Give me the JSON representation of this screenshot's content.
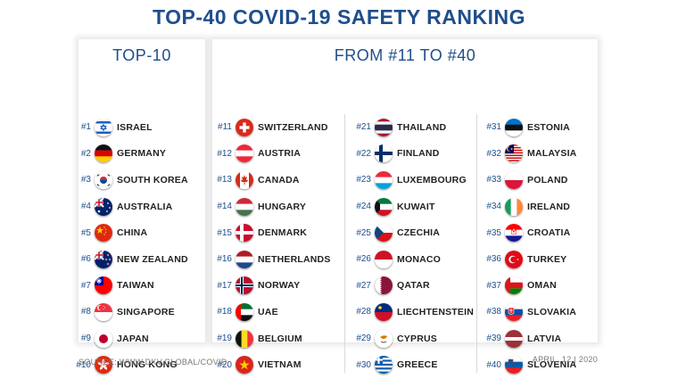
{
  "title": "TOP-40 COVID-19 SAFETY RANKING",
  "top10": {
    "heading": "TOP-10",
    "items": [
      {
        "rank": "#1",
        "name": "ISRAEL",
        "flag": "israel-flag-icon"
      },
      {
        "rank": "#2",
        "name": "GERMANY",
        "flag": "germany-flag-icon"
      },
      {
        "rank": "#3",
        "name": "SOUTH KOREA",
        "flag": "south-korea-flag-icon"
      },
      {
        "rank": "#4",
        "name": "AUSTRALIA",
        "flag": "australia-flag-icon"
      },
      {
        "rank": "#5",
        "name": "CHINA",
        "flag": "china-flag-icon"
      },
      {
        "rank": "#6",
        "name": "NEW ZEALAND",
        "flag": "new-zealand-flag-icon"
      },
      {
        "rank": "#7",
        "name": "TAIWAN",
        "flag": "taiwan-flag-icon"
      },
      {
        "rank": "#8",
        "name": "SINGAPORE",
        "flag": "singapore-flag-icon"
      },
      {
        "rank": "#9",
        "name": "JAPAN",
        "flag": "japan-flag-icon"
      },
      {
        "rank": "#10",
        "name": "HONG KONG",
        "flag": "hong-kong-flag-icon"
      }
    ]
  },
  "rest": {
    "heading": "FROM #11 TO #40",
    "columns": [
      [
        {
          "rank": "#11",
          "name": "SWITZERLAND",
          "flag": "switzerland-flag-icon"
        },
        {
          "rank": "#12",
          "name": "AUSTRIA",
          "flag": "austria-flag-icon"
        },
        {
          "rank": "#13",
          "name": "CANADA",
          "flag": "canada-flag-icon"
        },
        {
          "rank": "#14",
          "name": "HUNGARY",
          "flag": "hungary-flag-icon"
        },
        {
          "rank": "#15",
          "name": "DENMARK",
          "flag": "denmark-flag-icon"
        },
        {
          "rank": "#16",
          "name": "NETHERLANDS",
          "flag": "netherlands-flag-icon"
        },
        {
          "rank": "#17",
          "name": "NORWAY",
          "flag": "norway-flag-icon"
        },
        {
          "rank": "#18",
          "name": "UAE",
          "flag": "uae-flag-icon"
        },
        {
          "rank": "#19",
          "name": "BELGIUM",
          "flag": "belgium-flag-icon"
        },
        {
          "rank": "#20",
          "name": "VIETNAM",
          "flag": "vietnam-flag-icon"
        }
      ],
      [
        {
          "rank": "#21",
          "name": "THAILAND",
          "flag": "thailand-flag-icon"
        },
        {
          "rank": "#22",
          "name": "FINLAND",
          "flag": "finland-flag-icon"
        },
        {
          "rank": "#23",
          "name": "LUXEMBOURG",
          "flag": "luxembourg-flag-icon"
        },
        {
          "rank": "#24",
          "name": "KUWAIT",
          "flag": "kuwait-flag-icon"
        },
        {
          "rank": "#25",
          "name": "CZECHIA",
          "flag": "czechia-flag-icon"
        },
        {
          "rank": "#26",
          "name": "MONACO",
          "flag": "monaco-flag-icon"
        },
        {
          "rank": "#27",
          "name": "QATAR",
          "flag": "qatar-flag-icon"
        },
        {
          "rank": "#28",
          "name": "LIECHTENSTEIN",
          "flag": "liechtenstein-flag-icon"
        },
        {
          "rank": "#29",
          "name": "CYPRUS",
          "flag": "cyprus-flag-icon"
        },
        {
          "rank": "#30",
          "name": "GREECE",
          "flag": "greece-flag-icon"
        }
      ],
      [
        {
          "rank": "#31",
          "name": "ESTONIA",
          "flag": "estonia-flag-icon"
        },
        {
          "rank": "#32",
          "name": "MALAYSIA",
          "flag": "malaysia-flag-icon"
        },
        {
          "rank": "#33",
          "name": "POLAND",
          "flag": "poland-flag-icon"
        },
        {
          "rank": "#34",
          "name": "IRELAND",
          "flag": "ireland-flag-icon"
        },
        {
          "rank": "#35",
          "name": "CROATIA",
          "flag": "croatia-flag-icon"
        },
        {
          "rank": "#36",
          "name": "TURKEY",
          "flag": "turkey-flag-icon"
        },
        {
          "rank": "#37",
          "name": "OMAN",
          "flag": "oman-flag-icon"
        },
        {
          "rank": "#38",
          "name": "SLOVAKIA",
          "flag": "slovakia-flag-icon"
        },
        {
          "rank": "#39",
          "name": "LATVIA",
          "flag": "latvia-flag-icon"
        },
        {
          "rank": "#40",
          "name": "SLOVENIA",
          "flag": "slovenia-flag-icon"
        }
      ]
    ]
  },
  "footer": {
    "source": "SOURCE: WWW.DKV.GLOBAL/COVID",
    "date": "APRIL, 12 | 2020"
  },
  "colors": {
    "accent": "#1f4e8c",
    "text": "#222222",
    "muted": "#777777"
  }
}
